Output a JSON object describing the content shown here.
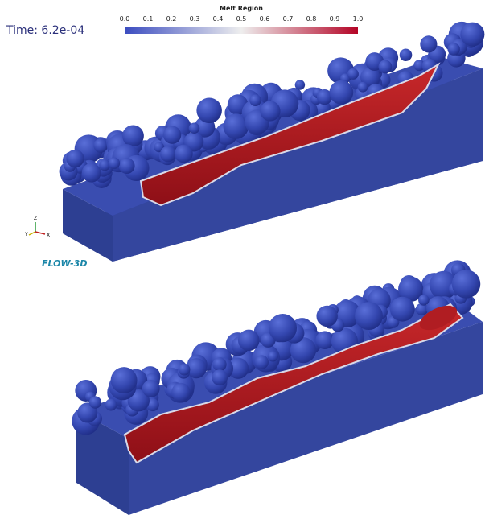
{
  "time_label": "Time: 6.2e-04",
  "colorbar": {
    "title": "Melt Region",
    "ticks": [
      "0.0",
      "0.1",
      "0.2",
      "0.3",
      "0.4",
      "0.5",
      "0.6",
      "0.7",
      "0.8",
      "0.9",
      "1.0"
    ]
  },
  "axes": {
    "z": "Z",
    "y": "Y",
    "x": "X"
  },
  "logo": "FLOW-3D"
}
